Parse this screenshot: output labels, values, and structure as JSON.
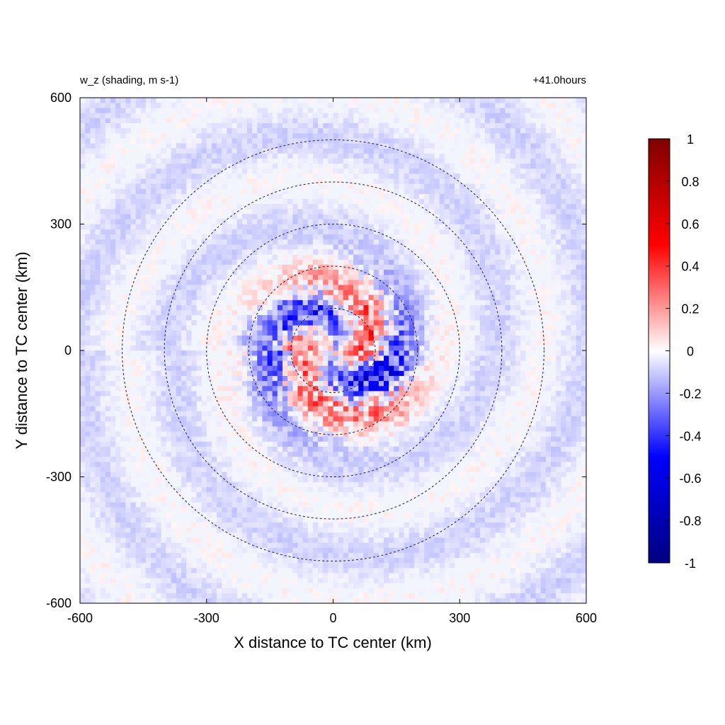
{
  "chart_data": {
    "type": "heatmap",
    "title_left": "w_z (shading, m s-1)",
    "title_right": "+41.0hours",
    "xlabel": "X distance to TC center (km)",
    "ylabel": "Y distance to TC center (km)",
    "xlim": [
      -600,
      600
    ],
    "ylim": [
      -600,
      600
    ],
    "x_ticks": [
      -600,
      -300,
      0,
      300,
      600
    ],
    "y_ticks": [
      -600,
      -300,
      0,
      300,
      600
    ],
    "x_tick_labels": [
      "-600",
      "-300",
      "0",
      "300",
      "600"
    ],
    "y_tick_labels": [
      "-600",
      "-300",
      "0",
      "300",
      "600"
    ],
    "colorbar": {
      "range": [
        -1,
        1
      ],
      "ticks": [
        1,
        0.8,
        0.6,
        0.4,
        0.2,
        0,
        -0.2,
        -0.4,
        -0.6,
        -0.8,
        -1
      ],
      "tick_labels": [
        "1",
        "0.8",
        "0.6",
        "0.4",
        "0.2",
        "0",
        "-0.2",
        "-0.4",
        "-0.6",
        "-0.8",
        "-1"
      ],
      "colors": [
        "#000080",
        "#0000ff",
        "#ffffff",
        "#ff0000",
        "#800000"
      ]
    },
    "range_rings_km": [
      100,
      200,
      300,
      400,
      500
    ],
    "rings_style": "dashed",
    "field_description": "Mostly near-zero vertical velocity (weak blue/red noise, |w| < 0.2 m s-1) with a spiral band of enhanced updrafts/downdrafts around the TC center; strongest values (about -0.7 to +0.6 m s-1) within ~200 km of the center, especially 50-200 km to the east/southeast."
  }
}
